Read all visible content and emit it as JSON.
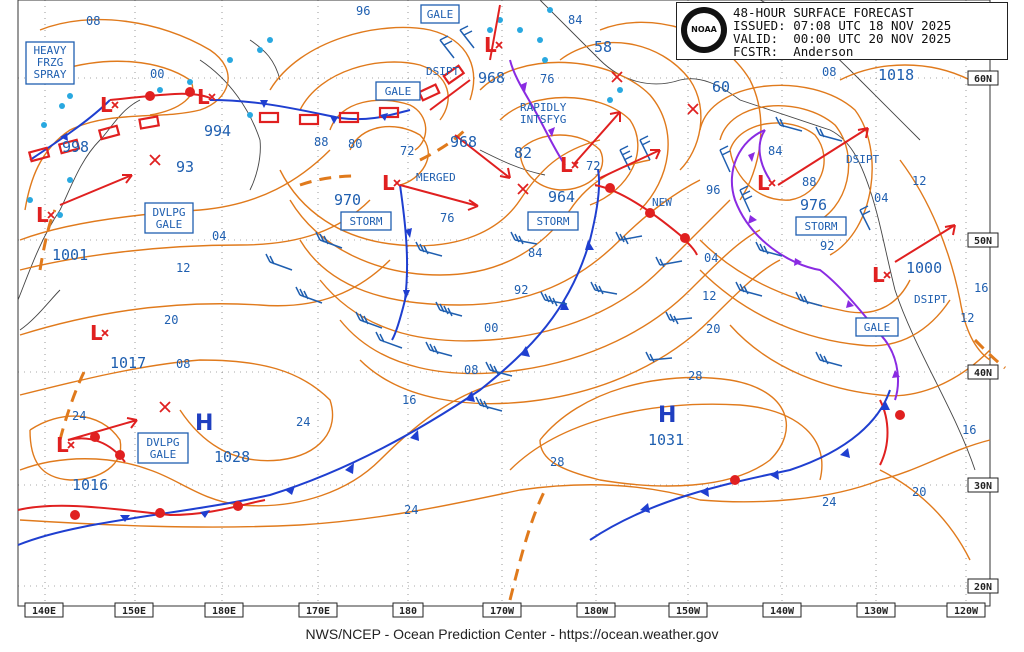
{
  "header": {
    "title": "48-HOUR SURFACE FORECAST",
    "issued": "ISSUED: 07:08 UTC 18 NOV 2025",
    "valid": "VALID:  00:00 UTC 20 NOV 2025",
    "forecaster": "FCSTR:  Anderson",
    "logo_text": "NOAA"
  },
  "footer": "NWS/NCEP - Ocean Prediction Center - https://ocean.weather.gov",
  "longitude_labels": [
    "140E",
    "150E",
    "180E",
    "170E",
    "180",
    "170W",
    "180W",
    "150W",
    "140W",
    "130W",
    "120W"
  ],
  "latitude_labels": [
    "60N",
    "50N",
    "40N",
    "30N",
    "20N"
  ],
  "pressure_centers": {
    "p998": "998",
    "p994": "994",
    "p993": "93",
    "p1001": "1001",
    "p1017": "1017",
    "p1016": "1016",
    "p1028": "1028",
    "p970": "970",
    "p968a": "968",
    "p968b": "968",
    "p982": "82",
    "p964": "964",
    "p958": "58",
    "p960": "60",
    "p976": "976",
    "p1031": "1031",
    "p1018": "1018",
    "p1000": "1000"
  },
  "warning_boxes": {
    "heavy_frzg_spray": [
      "HEAVY",
      "FRZG",
      "SPRAY"
    ],
    "gale_top": "GALE",
    "gale_mid": "GALE",
    "storm_970": "STORM",
    "storm_964": "STORM",
    "storm_976": "STORM",
    "dvlpg_gale_w": [
      "DVLPG",
      "GALE"
    ],
    "dvlpg_gale_sw": [
      "DVLPG",
      "GALE"
    ],
    "gale_east": "GALE"
  },
  "annotations": {
    "dsipt1": "DSIPT",
    "merged": "MERGED",
    "rapidly": "RAPIDLY",
    "intsfyg": "INTSFYG",
    "new": "NEW",
    "dsipt2": "DSIPT",
    "dsipt3": "DSIPT"
  },
  "isobar_labels": {
    "i08a": "08",
    "i96a": "96",
    "i00a": "00",
    "i88": "88",
    "i80": "80",
    "i72a": "72",
    "i76a": "76",
    "i84a": "84",
    "i72b": "72",
    "i76b": "76",
    "i84b": "84",
    "i88b": "88",
    "i08b": "08",
    "i04a": "04",
    "i12a": "12",
    "i20a": "20",
    "i08c": "08",
    "i24a": "24",
    "i84c": "84",
    "i92a": "92",
    "i00b": "00",
    "i08d": "08",
    "i16": "16",
    "i24b": "24",
    "i96b": "96",
    "i04b": "04",
    "i12b": "12",
    "i20b": "20",
    "i28a": "28",
    "i28b": "28",
    "i24c": "24",
    "i92b": "92",
    "i04c": "04",
    "i12c": "12",
    "i16b": "16",
    "i12d": "12",
    "i16c": "16",
    "i20c": "20"
  },
  "colors": {
    "isobar": "#e07a1c",
    "label": "#1f5fb0",
    "low": "#e02020",
    "high": "#1f3fc0",
    "cold_front": "#1f3fd0",
    "warm_front": "#e02020",
    "occluded": "#8a2be2"
  }
}
